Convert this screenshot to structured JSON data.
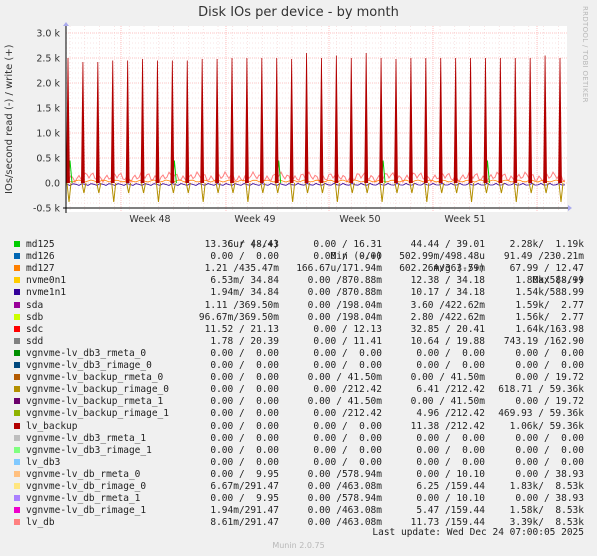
{
  "title": "Disk IOs per device - by month",
  "side_credit": "RRDTOOL / TOBI OETIKER",
  "footer": {
    "last_update": "Last update: Wed Dec 24 07:00:05 2025",
    "munin": "Munin 2.0.75"
  },
  "chart_data": {
    "type": "line",
    "title": "Disk IOs per device - by month",
    "ylabel": "IOs/second read (-) / write (+)",
    "ylim": [
      -0.5,
      3.0
    ],
    "yticks": [
      {
        "v": 3.0,
        "label": "3.0 k"
      },
      {
        "v": 2.5,
        "label": "2.5 k"
      },
      {
        "v": 2.0,
        "label": "2.0 k"
      },
      {
        "v": 1.5,
        "label": "1.5 k"
      },
      {
        "v": 1.0,
        "label": "1.0 k"
      },
      {
        "v": 0.5,
        "label": "0.5 k"
      },
      {
        "v": 0.0,
        "label": "0.0"
      },
      {
        "v": -0.5,
        "label": "-0.5 k"
      }
    ],
    "xticks": [
      "Week 48",
      "Week 49",
      "Week 50",
      "Week 51"
    ],
    "grid": true,
    "spike_peaks_k": [
      2.5,
      2.42,
      2.42,
      2.45,
      2.45,
      2.48,
      2.45,
      2.45,
      2.45,
      2.48,
      2.48,
      2.5,
      2.5,
      2.5,
      2.5,
      2.48,
      2.6,
      2.5,
      2.55,
      2.5,
      2.6,
      2.5,
      2.48,
      2.5,
      2.5,
      2.5,
      2.5,
      2.5,
      2.5,
      2.5,
      2.5,
      2.5,
      2.55,
      2.5
    ],
    "legend_header": {
      "cur": "Cur (-/+)",
      "min": "Min (-/+)",
      "avg": "Avg (-/+)",
      "max": "Max (-/+)"
    },
    "series": [
      {
        "name": "md125",
        "color": "#00cc00",
        "cur": "13.36 / 48.43",
        "min": "0.00 / 16.31",
        "avg": "44.44 / 39.01",
        "max": "2.28k/  1.19k"
      },
      {
        "name": "md126",
        "color": "#0066b3",
        "cur": "0.00 /  0.00",
        "min": "0.00 /  0.00",
        "avg": "502.99m/498.48u",
        "max": "91.49 /230.21m"
      },
      {
        "name": "md127",
        "color": "#ff8000",
        "cur": "1.21 /435.47m",
        "min": "166.67u/171.94m",
        "avg": "602.26m/363.59m",
        "max": "67.99 / 12.47"
      },
      {
        "name": "nvme0n1",
        "color": "#ffcc00",
        "cur": "6.53m/ 34.84",
        "min": "0.00 /870.88m",
        "avg": "12.38 / 34.18",
        "max": "1.80k/588.99"
      },
      {
        "name": "nvme1n1",
        "color": "#330099",
        "cur": "1.94m/ 34.84",
        "min": "0.00 /870.88m",
        "avg": "10.17 / 34.18",
        "max": "1.54k/588.99"
      },
      {
        "name": "sda",
        "color": "#990099",
        "cur": "1.11 /369.50m",
        "min": "0.00 /198.04m",
        "avg": "3.60 /422.62m",
        "max": "1.59k/  2.77"
      },
      {
        "name": "sdb",
        "color": "#ccff00",
        "cur": "96.67m/369.50m",
        "min": "0.00 /198.04m",
        "avg": "2.80 /422.62m",
        "max": "1.56k/  2.77"
      },
      {
        "name": "sdc",
        "color": "#ff0000",
        "cur": "11.52 / 21.13",
        "min": "0.00 / 12.13",
        "avg": "32.85 / 20.41",
        "max": "1.64k/163.98"
      },
      {
        "name": "sdd",
        "color": "#808080",
        "cur": "1.78 / 20.39",
        "min": "0.00 / 11.41",
        "avg": "10.64 / 19.88",
        "max": "743.19 /162.90"
      },
      {
        "name": "vgnvme-lv_db3_rmeta_0",
        "color": "#008f00",
        "cur": "0.00 /  0.00",
        "min": "0.00 /  0.00",
        "avg": "0.00 /  0.00",
        "max": "0.00 /  0.00"
      },
      {
        "name": "vgnvme-lv_db3_rimage_0",
        "color": "#00487d",
        "cur": "0.00 /  0.00",
        "min": "0.00 /  0.00",
        "avg": "0.00 /  0.00",
        "max": "0.00 /  0.00"
      },
      {
        "name": "vgnvme-lv_backup_rmeta_0",
        "color": "#b35a00",
        "cur": "0.00 /  0.00",
        "min": "0.00 / 41.50m",
        "avg": "0.00 / 41.50m",
        "max": "0.00 / 19.72"
      },
      {
        "name": "vgnvme-lv_backup_rimage_0",
        "color": "#b38f00",
        "cur": "0.00 /  0.00",
        "min": "0.00 /212.42",
        "avg": "6.41 /212.42",
        "max": "618.71 / 59.36k"
      },
      {
        "name": "vgnvme-lv_backup_rmeta_1",
        "color": "#6b006b",
        "cur": "0.00 /  0.00",
        "min": "0.00 / 41.50m",
        "avg": "0.00 / 41.50m",
        "max": "0.00 / 19.72"
      },
      {
        "name": "vgnvme-lv_backup_rimage_1",
        "color": "#8fb300",
        "cur": "0.00 /  0.00",
        "min": "0.00 /212.42",
        "avg": "4.96 /212.42",
        "max": "469.93 / 59.36k"
      },
      {
        "name": "lv_backup",
        "color": "#b30000",
        "cur": "0.00 /  0.00",
        "min": "0.00 /  0.00",
        "avg": "11.38 /212.42",
        "max": "1.06k/ 59.36k"
      },
      {
        "name": "vgnvme-lv_db3_rmeta_1",
        "color": "#bebebe",
        "cur": "0.00 /  0.00",
        "min": "0.00 /  0.00",
        "avg": "0.00 /  0.00",
        "max": "0.00 /  0.00"
      },
      {
        "name": "vgnvme-lv_db3_rimage_1",
        "color": "#80ff80",
        "cur": "0.00 /  0.00",
        "min": "0.00 /  0.00",
        "avg": "0.00 /  0.00",
        "max": "0.00 /  0.00"
      },
      {
        "name": "lv_db3",
        "color": "#80c9ff",
        "cur": "0.00 /  0.00",
        "min": "0.00 /  0.00",
        "avg": "0.00 /  0.00",
        "max": "0.00 /  0.00"
      },
      {
        "name": "vgnvme-lv_db_rmeta_0",
        "color": "#ffc080",
        "cur": "0.00 /  9.95",
        "min": "0.00 /578.94m",
        "avg": "0.00 / 10.10",
        "max": "0.00 / 38.93"
      },
      {
        "name": "vgnvme-lv_db_rimage_0",
        "color": "#ffe680",
        "cur": "6.67m/291.47",
        "min": "0.00 /463.08m",
        "avg": "6.25 /159.44",
        "max": "1.83k/  8.53k"
      },
      {
        "name": "vgnvme-lv_db_rmeta_1",
        "color": "#aa80ff",
        "cur": "0.00 /  9.95",
        "min": "0.00 /578.94m",
        "avg": "0.00 / 10.10",
        "max": "0.00 / 38.93"
      },
      {
        "name": "vgnvme-lv_db_rimage_1",
        "color": "#ee00cc",
        "cur": "1.94m/291.47",
        "min": "0.00 /463.08m",
        "avg": "5.47 /159.44",
        "max": "1.58k/  8.53k"
      },
      {
        "name": "lv_db",
        "color": "#ff8080",
        "cur": "8.61m/291.47",
        "min": "0.00 /463.08m",
        "avg": "11.73 /159.44",
        "max": "3.39k/  8.53k"
      }
    ]
  }
}
